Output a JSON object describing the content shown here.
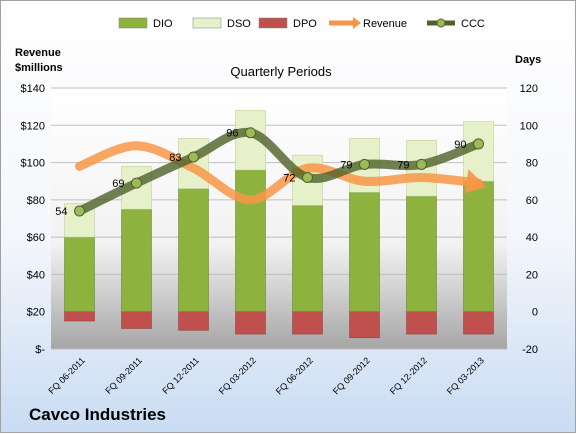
{
  "chart_data": {
    "type": "bar",
    "title": "Quarterly Periods",
    "company": "Cavco Industries",
    "left_axis_title": "Revenue $millions",
    "right_axis_title": "Days",
    "left_ylim": [
      0,
      140
    ],
    "left_ticks": [
      "$-",
      "$20",
      "$40",
      "$60",
      "$80",
      "$100",
      "$120",
      "$140"
    ],
    "right_ylim": [
      -20,
      120
    ],
    "right_ticks": [
      "-20",
      "0",
      "20",
      "40",
      "60",
      "80",
      "100",
      "120"
    ],
    "categories": [
      "FQ 06-2011",
      "FQ 09-2011",
      "FQ 12-2011",
      "FQ 03-2012",
      "FQ 06-2012",
      "FQ 09-2012",
      "FQ 12-2012",
      "FQ 03-2013"
    ],
    "legend": [
      "DIO",
      "DSO",
      "DPO",
      "Revenue",
      "CCC"
    ],
    "colors": {
      "DIO": "#8db33e",
      "DSO": "#e6f0c9",
      "DPO": "#c0504d",
      "Revenue": "#f79646",
      "CCC": "#4f6228"
    },
    "series": [
      {
        "name": "DIO",
        "axis": "right",
        "values": [
          40,
          55,
          66,
          76,
          57,
          64,
          62,
          70
        ]
      },
      {
        "name": "DSO",
        "axis": "right",
        "values": [
          18,
          23,
          27,
          32,
          27,
          29,
          30,
          32
        ]
      },
      {
        "name": "DPO",
        "axis": "right",
        "values": [
          -5,
          -9,
          -10,
          -12,
          -12,
          -14,
          -12,
          -12
        ]
      },
      {
        "name": "Revenue",
        "axis": "left",
        "values": [
          98,
          109,
          97,
          80,
          97,
          90,
          92,
          89
        ]
      },
      {
        "name": "CCC",
        "axis": "right",
        "values": [
          54,
          69,
          83,
          96,
          72,
          79,
          79,
          90
        ]
      }
    ]
  }
}
